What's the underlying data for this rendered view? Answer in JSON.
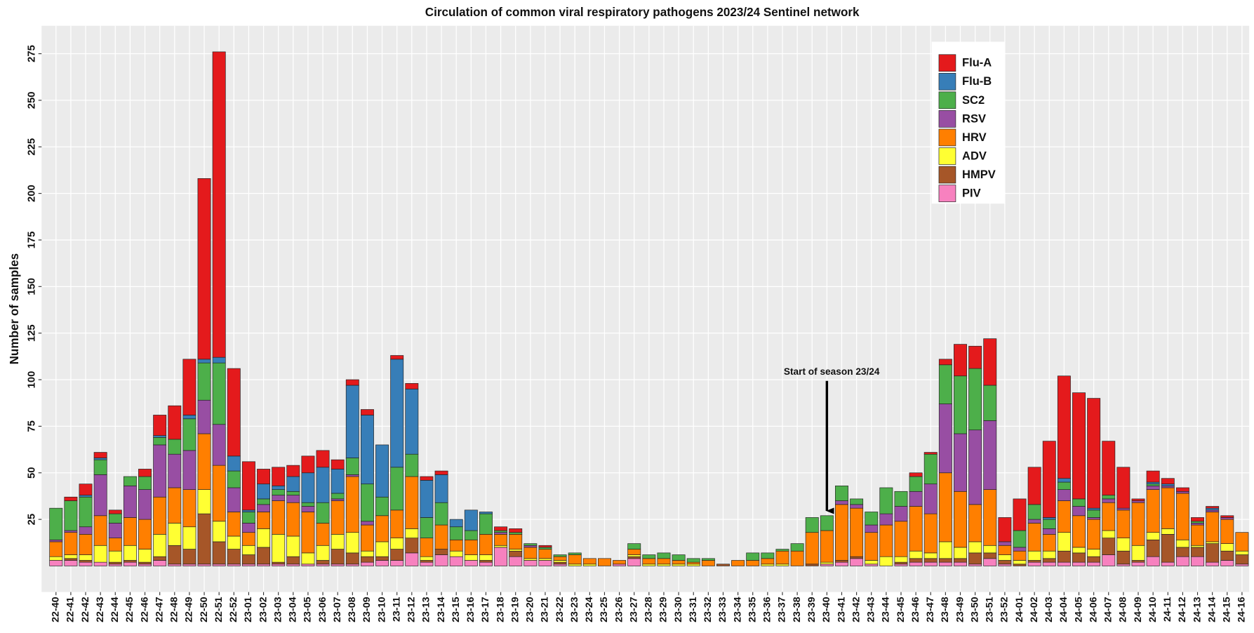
{
  "chart_data": {
    "type": "bar",
    "stacked": true,
    "title": "Circulation of common viral respiratory  pathogens 2023/24 Sentinel network",
    "y_label": "Number of samples",
    "categories": [
      "22-40",
      "22-41",
      "22-42",
      "22-43",
      "22-44",
      "22-45",
      "22-46",
      "22-47",
      "22-48",
      "22-49",
      "22-50",
      "22-51",
      "22-52",
      "23-01",
      "23-02",
      "23-03",
      "23-04",
      "23-05",
      "23-06",
      "23-07",
      "23-08",
      "23-09",
      "23-10",
      "23-11",
      "23-12",
      "23-13",
      "23-14",
      "23-15",
      "23-16",
      "23-17",
      "23-18",
      "23-19",
      "23-20",
      "23-21",
      "23-22",
      "23-23",
      "23-24",
      "23-25",
      "23-26",
      "23-27",
      "23-28",
      "23-29",
      "23-30",
      "23-31",
      "23-32",
      "23-33",
      "23-34",
      "23-35",
      "23-36",
      "23-37",
      "23-38",
      "23-39",
      "23-40",
      "23-41",
      "23-42",
      "23-43",
      "23-44",
      "23-45",
      "23-46",
      "23-47",
      "23-48",
      "23-49",
      "23-50",
      "23-51",
      "23-52",
      "24-01",
      "24-02",
      "24-03",
      "24-04",
      "24-05",
      "24-06",
      "24-07",
      "24-08",
      "24-09",
      "24-10",
      "24-11",
      "24-12",
      "24-13",
      "24-14",
      "24-15",
      "24-16"
    ],
    "series": [
      {
        "name": "Flu-A",
        "color": "#E41A1C",
        "values": [
          0,
          2,
          6,
          3,
          2,
          0,
          4,
          11,
          18,
          30,
          97,
          164,
          47,
          26,
          8,
          10,
          6,
          9,
          9,
          5,
          3,
          3,
          0,
          2,
          3,
          2,
          2,
          0,
          0,
          0,
          2,
          2,
          0,
          1,
          0,
          0,
          0,
          0,
          0,
          0,
          0,
          0,
          0,
          0,
          0,
          0,
          0,
          0,
          0,
          0,
          0,
          0,
          0,
          0,
          0,
          0,
          0,
          0,
          2,
          1,
          3,
          17,
          12,
          25,
          13,
          17,
          20,
          41,
          55,
          57,
          59,
          29,
          22,
          1,
          6,
          3,
          2,
          2,
          1,
          1,
          0
        ]
      },
      {
        "name": "Flu-B",
        "color": "#377EB8",
        "values": [
          0,
          0,
          1,
          1,
          0,
          0,
          0,
          1,
          0,
          2,
          2,
          3,
          8,
          1,
          8,
          2,
          8,
          16,
          19,
          13,
          39,
          37,
          28,
          58,
          35,
          20,
          15,
          4,
          11,
          1,
          0,
          0,
          0,
          0,
          0,
          0,
          0,
          0,
          0,
          0,
          0,
          0,
          0,
          0,
          0,
          0,
          0,
          0,
          0,
          0,
          0,
          0,
          0,
          0,
          0,
          0,
          0,
          0,
          0,
          0,
          0,
          0,
          0,
          0,
          0,
          0,
          0,
          1,
          2,
          0,
          1,
          0,
          0,
          0,
          1,
          1,
          0,
          0,
          1,
          0,
          0
        ]
      },
      {
        "name": "SC2",
        "color": "#4DAF4A",
        "values": [
          17,
          16,
          16,
          8,
          5,
          5,
          7,
          4,
          8,
          17,
          20,
          33,
          9,
          6,
          3,
          3,
          2,
          2,
          11,
          3,
          9,
          20,
          10,
          23,
          12,
          11,
          12,
          7,
          5,
          11,
          1,
          1,
          1,
          1,
          1,
          1,
          0,
          0,
          0,
          3,
          2,
          3,
          3,
          2,
          1,
          0,
          0,
          4,
          3,
          1,
          4,
          8,
          8,
          8,
          3,
          7,
          14,
          8,
          8,
          16,
          21,
          31,
          33,
          19,
          0,
          9,
          8,
          5,
          4,
          4,
          4,
          2,
          0,
          0,
          1,
          0,
          0,
          1,
          0,
          0,
          0
        ]
      },
      {
        "name": "RSV",
        "color": "#984EA3",
        "values": [
          1,
          1,
          4,
          22,
          8,
          17,
          16,
          28,
          18,
          21,
          18,
          22,
          13,
          5,
          4,
          3,
          4,
          3,
          0,
          1,
          1,
          2,
          0,
          0,
          0,
          0,
          0,
          0,
          0,
          0,
          1,
          0,
          1,
          0,
          0,
          0,
          0,
          0,
          0,
          0,
          0,
          0,
          0,
          0,
          0,
          0,
          0,
          0,
          0,
          0,
          0,
          0,
          0,
          2,
          2,
          4,
          6,
          8,
          8,
          16,
          37,
          31,
          40,
          37,
          2,
          2,
          2,
          3,
          6,
          5,
          1,
          2,
          1,
          1,
          2,
          1,
          1,
          1,
          1,
          1,
          0
        ]
      },
      {
        "name": "HRV",
        "color": "#FF7F00",
        "values": [
          8,
          12,
          11,
          16,
          7,
          15,
          16,
          20,
          19,
          20,
          30,
          30,
          13,
          7,
          9,
          18,
          18,
          22,
          12,
          18,
          30,
          14,
          14,
          15,
          28,
          10,
          13,
          6,
          8,
          11,
          6,
          8,
          6,
          5,
          2,
          5,
          3,
          4,
          2,
          3,
          3,
          3,
          2,
          1,
          3,
          0,
          3,
          3,
          3,
          7,
          8,
          17,
          17,
          30,
          26,
          15,
          17,
          19,
          24,
          21,
          37,
          30,
          20,
          30,
          5,
          5,
          15,
          9,
          17,
          17,
          16,
          15,
          15,
          23,
          23,
          22,
          25,
          11,
          16,
          13,
          10
        ]
      },
      {
        "name": "ADV",
        "color": "#FFFF33",
        "values": [
          2,
          2,
          3,
          9,
          6,
          8,
          7,
          12,
          12,
          12,
          13,
          11,
          7,
          5,
          10,
          15,
          11,
          6,
          8,
          8,
          11,
          3,
          8,
          6,
          5,
          2,
          0,
          3,
          3,
          3,
          1,
          1,
          1,
          1,
          1,
          1,
          1,
          0,
          0,
          1,
          1,
          1,
          1,
          1,
          0,
          0,
          0,
          0,
          1,
          1,
          0,
          0,
          1,
          0,
          0,
          2,
          5,
          3,
          4,
          3,
          9,
          6,
          6,
          4,
          3,
          2,
          5,
          4,
          10,
          3,
          4,
          4,
          7,
          8,
          4,
          3,
          4,
          1,
          1,
          4,
          2
        ]
      },
      {
        "name": "HMPV",
        "color": "#A65628",
        "values": [
          0,
          1,
          1,
          0,
          1,
          1,
          1,
          2,
          10,
          8,
          27,
          12,
          8,
          5,
          9,
          1,
          4,
          0,
          2,
          8,
          6,
          3,
          2,
          6,
          8,
          1,
          3,
          0,
          0,
          1,
          0,
          3,
          0,
          0,
          1,
          0,
          0,
          0,
          0,
          1,
          0,
          0,
          0,
          0,
          0,
          1,
          0,
          0,
          0,
          0,
          0,
          1,
          0,
          1,
          1,
          0,
          0,
          1,
          2,
          2,
          2,
          2,
          6,
          3,
          2,
          1,
          1,
          2,
          6,
          5,
          3,
          9,
          7,
          1,
          9,
          15,
          5,
          5,
          10,
          5,
          5
        ]
      },
      {
        "name": "PIV",
        "color": "#F781BF",
        "values": [
          3,
          3,
          2,
          2,
          1,
          2,
          1,
          3,
          1,
          1,
          1,
          1,
          1,
          1,
          1,
          1,
          1,
          1,
          1,
          1,
          1,
          2,
          3,
          3,
          7,
          2,
          6,
          5,
          3,
          2,
          10,
          5,
          3,
          3,
          1,
          0,
          0,
          0,
          1,
          4,
          0,
          0,
          0,
          0,
          0,
          0,
          0,
          0,
          0,
          0,
          0,
          0,
          1,
          2,
          4,
          1,
          0,
          1,
          2,
          2,
          2,
          2,
          1,
          4,
          1,
          0,
          2,
          2,
          2,
          2,
          2,
          6,
          1,
          2,
          5,
          2,
          5,
          5,
          2,
          3,
          1
        ]
      }
    ],
    "ylim": [
      -14,
      290
    ],
    "yticks": [
      25,
      50,
      75,
      100,
      125,
      150,
      175,
      200,
      225,
      250,
      275
    ],
    "grid": true,
    "legend": "top-right",
    "annotation": {
      "text": "Start of season 23/24",
      "x": "23-40"
    }
  }
}
